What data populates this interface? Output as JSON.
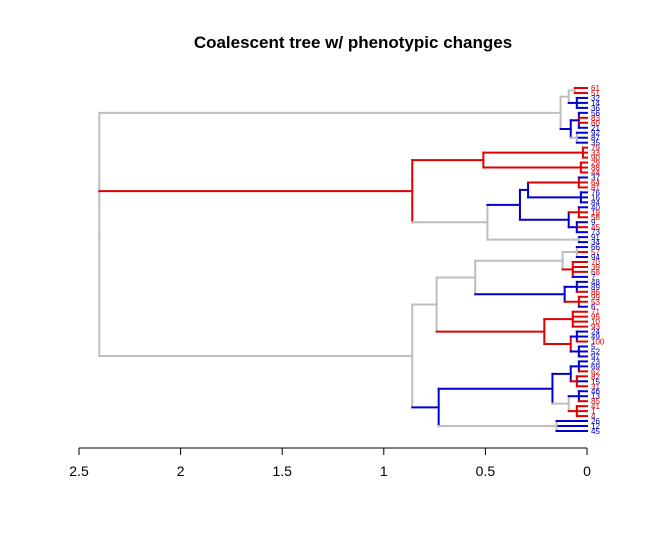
{
  "chart_data": {
    "type": "dendrogram",
    "title": "Coalescent tree w/ phenotypic changes",
    "xlabel": "",
    "ylabel": "",
    "x_axis_direction": "reversed",
    "xlim": [
      2.5,
      0
    ],
    "ticks": [
      2.5,
      2,
      1.5,
      1,
      0.5,
      0
    ],
    "tick_labels": [
      "2.5",
      "2",
      "1.5",
      "1",
      "0.5",
      "0"
    ],
    "colors": {
      "gray": "#bebebe",
      "red": "#e00000",
      "blue": "#0000cc"
    },
    "tree": {
      "h": 2.4,
      "c": "gray",
      "k": [
        {
          "h": 0.13,
          "c": "gray",
          "k": [
            {
              "h": 0.09,
              "c": "gray",
              "k": [
                {
                  "h": 0.06,
                  "c": "gray",
                  "k": [
                    {
                      "t": "61",
                      "c": "red"
                    },
                    {
                      "t": "51",
                      "c": "red"
                    }
                  ]
                },
                {
                  "h": 0.05,
                  "c": "blue",
                  "k": [
                    {
                      "t": "32",
                      "c": "blue"
                    },
                    {
                      "t": "14",
                      "c": "blue"
                    },
                    {
                      "t": "36",
                      "c": "blue"
                    }
                  ]
                }
              ]
            },
            {
              "h": 0.08,
              "c": "blue",
              "k": [
                {
                  "h": 0.04,
                  "c": "blue",
                  "k": [
                    {
                      "t": "56",
                      "c": "blue"
                    },
                    {
                      "t": "83",
                      "c": "red"
                    },
                    {
                      "t": "60",
                      "c": "red"
                    },
                    {
                      "t": "21",
                      "c": "blue"
                    }
                  ]
                },
                {
                  "h": 0.05,
                  "c": "gray",
                  "k": [
                    {
                      "t": "92",
                      "c": "blue"
                    },
                    {
                      "t": "87",
                      "c": "blue"
                    },
                    {
                      "t": "35",
                      "c": "blue"
                    }
                  ]
                }
              ]
            }
          ]
        },
        {
          "h": 0.86,
          "c": "red",
          "k": [
            {
              "h": 0.51,
              "c": "red",
              "k": [
                {
                  "h": 0.02,
                  "c": "red",
                  "k": [
                    {
                      "t": "79",
                      "c": "red"
                    },
                    {
                      "t": "33",
                      "c": "red"
                    },
                    {
                      "t": "90",
                      "c": "red"
                    }
                  ]
                },
                {
                  "h": 0.03,
                  "c": "red",
                  "k": [
                    {
                      "t": "29",
                      "c": "red"
                    },
                    {
                      "t": "88",
                      "c": "red"
                    },
                    {
                      "t": "44",
                      "c": "red"
                    }
                  ]
                }
              ]
            },
            {
              "h": 0.49,
              "c": "gray",
              "k": [
                {
                  "h": 0.33,
                  "c": "blue",
                  "k": [
                    {
                      "h": 0.29,
                      "c": "blue",
                      "k": [
                        {
                          "h": 0.04,
                          "c": "red",
                          "k": [
                            {
                              "t": "37",
                              "c": "blue"
                            },
                            {
                              "t": "64",
                              "c": "red"
                            },
                            {
                              "t": "81",
                              "c": "red"
                            }
                          ]
                        },
                        {
                          "h": 0.03,
                          "c": "blue",
                          "k": [
                            {
                              "t": "76",
                              "c": "blue"
                            },
                            {
                              "t": "16",
                              "c": "blue"
                            },
                            {
                              "t": "84",
                              "c": "blue"
                            }
                          ]
                        }
                      ]
                    },
                    {
                      "h": 0.09,
                      "c": "blue",
                      "k": [
                        {
                          "h": 0.04,
                          "c": "red",
                          "k": [
                            {
                              "t": "40",
                              "c": "blue"
                            },
                            {
                              "t": "19",
                              "c": "red"
                            },
                            {
                              "t": "58",
                              "c": "red"
                            }
                          ]
                        },
                        {
                          "h": 0.05,
                          "c": "blue",
                          "k": [
                            {
                              "t": "9",
                              "c": "blue"
                            },
                            {
                              "t": "45",
                              "c": "red"
                            },
                            {
                              "t": "73",
                              "c": "blue"
                            }
                          ]
                        }
                      ]
                    }
                  ]
                },
                {
                  "h": 0.04,
                  "c": "gray",
                  "k": [
                    {
                      "t": "91",
                      "c": "blue"
                    },
                    {
                      "t": "34",
                      "c": "blue"
                    }
                  ]
                }
              ]
            }
          ]
        },
        {
          "h": 0.86,
          "c": "gray",
          "k": [
            {
              "h": 0.74,
              "c": "gray",
              "k": [
                {
                  "h": 0.55,
                  "c": "gray",
                  "k": [
                    {
                      "h": 0.12,
                      "c": "gray",
                      "k": [
                        {
                          "h": 0.05,
                          "c": "gray",
                          "k": [
                            {
                              "t": "66",
                              "c": "blue"
                            },
                            {
                              "t": "57",
                              "c": "red"
                            },
                            {
                              "t": "94",
                              "c": "blue"
                            }
                          ]
                        },
                        {
                          "h": 0.07,
                          "c": "red",
                          "k": [
                            {
                              "t": "70",
                              "c": "red"
                            },
                            {
                              "t": "39",
                              "c": "red"
                            },
                            {
                              "t": "68",
                              "c": "red"
                            },
                            {
                              "t": "7",
                              "c": "blue"
                            }
                          ]
                        }
                      ]
                    },
                    {
                      "h": 0.11,
                      "c": "blue",
                      "k": [
                        {
                          "h": 0.05,
                          "c": "blue",
                          "k": [
                            {
                              "t": "48",
                              "c": "blue"
                            },
                            {
                              "t": "89",
                              "c": "blue"
                            },
                            {
                              "t": "86",
                              "c": "red"
                            }
                          ]
                        },
                        {
                          "h": 0.04,
                          "c": "red",
                          "k": [
                            {
                              "t": "99",
                              "c": "red"
                            },
                            {
                              "t": "53",
                              "c": "red"
                            },
                            {
                              "t": "6",
                              "c": "blue"
                            }
                          ]
                        }
                      ]
                    }
                  ]
                },
                {
                  "h": 0.21,
                  "c": "red",
                  "k": [
                    {
                      "h": 0.07,
                      "c": "red",
                      "k": [
                        {
                          "t": "71",
                          "c": "red"
                        },
                        {
                          "t": "95",
                          "c": "red"
                        },
                        {
                          "t": "10",
                          "c": "red"
                        },
                        {
                          "t": "93",
                          "c": "red"
                        }
                      ]
                    },
                    {
                      "h": 0.08,
                      "c": "red",
                      "k": [
                        {
                          "h": 0.05,
                          "c": "blue",
                          "k": [
                            {
                              "t": "24",
                              "c": "blue"
                            },
                            {
                              "t": "49",
                              "c": "blue"
                            },
                            {
                              "t": "100",
                              "c": "red"
                            }
                          ]
                        },
                        {
                          "h": 0.04,
                          "c": "blue",
                          "k": [
                            {
                              "t": "5",
                              "c": "blue"
                            },
                            {
                              "t": "52",
                              "c": "blue"
                            },
                            {
                              "t": "97",
                              "c": "blue"
                            }
                          ]
                        }
                      ]
                    }
                  ]
                }
              ]
            },
            {
              "h": 0.73,
              "c": "blue",
              "k": [
                {
                  "h": 0.17,
                  "c": "blue",
                  "k": [
                    {
                      "h": 0.08,
                      "c": "blue",
                      "k": [
                        {
                          "h": 0.04,
                          "c": "blue",
                          "k": [
                            {
                              "t": "23",
                              "c": "blue"
                            },
                            {
                              "t": "69",
                              "c": "blue"
                            },
                            {
                              "t": "62",
                              "c": "red"
                            }
                          ]
                        },
                        {
                          "h": 0.05,
                          "c": "red",
                          "k": [
                            {
                              "t": "82",
                              "c": "red"
                            },
                            {
                              "t": "15",
                              "c": "blue"
                            },
                            {
                              "t": "31",
                              "c": "red"
                            }
                          ]
                        }
                      ]
                    },
                    {
                      "h": 0.09,
                      "c": "gray",
                      "k": [
                        {
                          "h": 0.04,
                          "c": "blue",
                          "k": [
                            {
                              "t": "46",
                              "c": "blue"
                            },
                            {
                              "t": "13",
                              "c": "blue"
                            },
                            {
                              "t": "85",
                              "c": "red"
                            }
                          ]
                        },
                        {
                          "h": 0.05,
                          "c": "red",
                          "k": [
                            {
                              "t": "41",
                              "c": "red"
                            },
                            {
                              "t": "1",
                              "c": "red"
                            },
                            {
                              "t": "4",
                              "c": "red"
                            }
                          ]
                        }
                      ]
                    }
                  ]
                },
                {
                  "h": 0.15,
                  "c": "gray",
                  "k": [
                    {
                      "t": "26",
                      "c": "blue"
                    },
                    {
                      "t": "12",
                      "c": "blue"
                    },
                    {
                      "t": "45",
                      "c": "blue"
                    }
                  ]
                }
              ]
            }
          ]
        }
      ]
    }
  }
}
